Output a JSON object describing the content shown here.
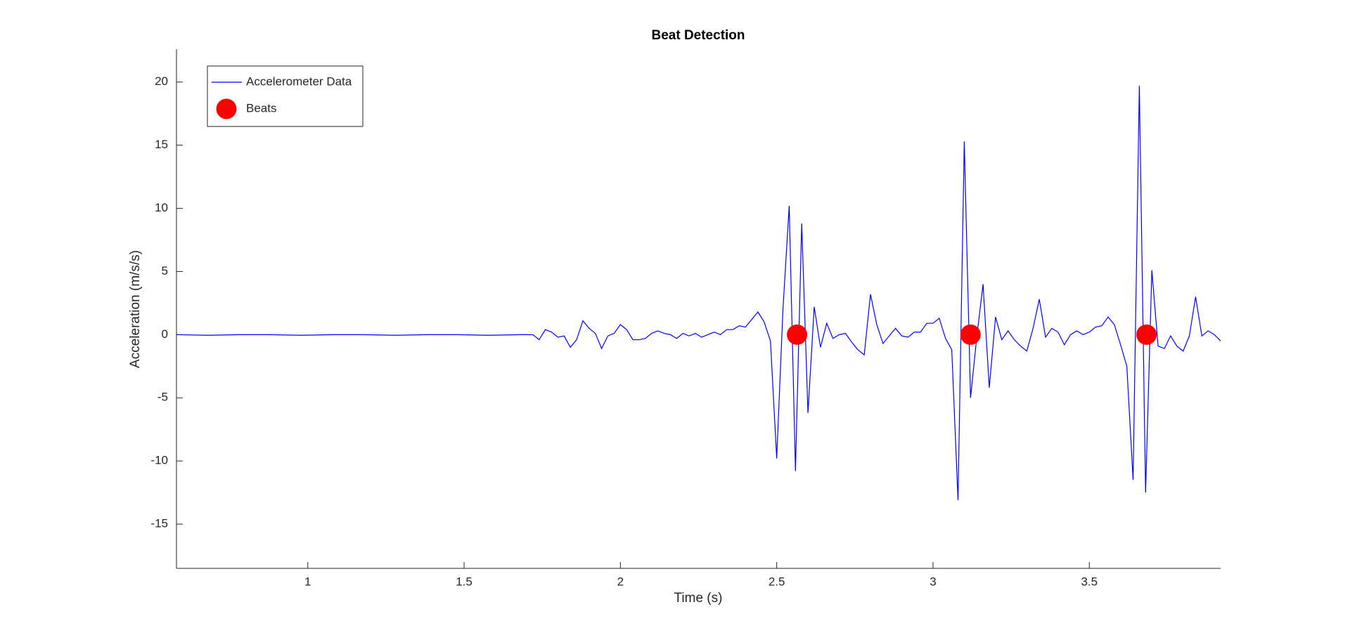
{
  "chart_data": {
    "type": "line",
    "title": "Beat Detection",
    "x_label": "Time (s)",
    "y_label": "Acceleration (m/s/s)",
    "xlim": [
      0.58,
      3.92
    ],
    "ylim": [
      -18.5,
      22.6
    ],
    "xticks": [
      1,
      1.5,
      2,
      2.5,
      3,
      3.5
    ],
    "yticks": [
      -15,
      -10,
      -5,
      0,
      5,
      10,
      15,
      20
    ],
    "legend": "upper-left",
    "grid": false,
    "series": [
      {
        "name": "Accelerometer Data",
        "type": "line",
        "color": "#0000ff",
        "x": [
          0.58,
          0.68,
          0.78,
          0.88,
          0.98,
          1.08,
          1.18,
          1.28,
          1.38,
          1.48,
          1.58,
          1.68,
          1.72,
          1.74,
          1.76,
          1.78,
          1.8,
          1.82,
          1.84,
          1.86,
          1.88,
          1.9,
          1.92,
          1.94,
          1.96,
          1.98,
          2.0,
          2.02,
          2.04,
          2.06,
          2.08,
          2.1,
          2.12,
          2.14,
          2.16,
          2.18,
          2.2,
          2.22,
          2.24,
          2.26,
          2.28,
          2.3,
          2.32,
          2.34,
          2.36,
          2.38,
          2.4,
          2.42,
          2.44,
          2.46,
          2.48,
          2.5,
          2.52,
          2.54,
          2.56,
          2.58,
          2.6,
          2.62,
          2.64,
          2.66,
          2.68,
          2.7,
          2.72,
          2.74,
          2.76,
          2.78,
          2.8,
          2.82,
          2.84,
          2.86,
          2.88,
          2.9,
          2.92,
          2.94,
          2.96,
          2.98,
          3.0,
          3.02,
          3.04,
          3.06,
          3.08,
          3.1,
          3.12,
          3.14,
          3.16,
          3.18,
          3.2,
          3.22,
          3.24,
          3.26,
          3.28,
          3.3,
          3.32,
          3.34,
          3.36,
          3.38,
          3.4,
          3.42,
          3.44,
          3.46,
          3.48,
          3.5,
          3.52,
          3.54,
          3.56,
          3.58,
          3.6,
          3.62,
          3.64,
          3.66,
          3.68,
          3.7,
          3.72,
          3.74,
          3.76,
          3.78,
          3.8,
          3.82,
          3.84,
          3.86,
          3.88,
          3.9,
          3.92
        ],
        "values": [
          0,
          -0.05,
          0,
          0,
          -0.05,
          0,
          0,
          -0.05,
          0,
          0,
          -0.05,
          0,
          0,
          -0.4,
          0.4,
          0.2,
          -0.2,
          -0.1,
          -1.0,
          -0.4,
          1.1,
          0.5,
          0.1,
          -1.1,
          -0.1,
          0.1,
          0.8,
          0.4,
          -0.4,
          -0.4,
          -0.3,
          0.1,
          0.3,
          0.1,
          0.0,
          -0.3,
          0.1,
          -0.1,
          0.1,
          -0.2,
          0.0,
          0.2,
          0.0,
          0.4,
          0.4,
          0.7,
          0.6,
          1.2,
          1.8,
          1.0,
          -0.5,
          -9.8,
          2.0,
          10.2,
          -10.8,
          8.8,
          -6.2,
          2.2,
          -1.0,
          0.9,
          -0.3,
          0.0,
          0.1,
          -0.6,
          -1.2,
          -1.6,
          3.2,
          0.8,
          -0.7,
          -0.1,
          0.5,
          -0.1,
          -0.2,
          0.2,
          0.2,
          0.9,
          0.9,
          1.3,
          -0.3,
          -1.2,
          -13.1,
          15.3,
          -5.0,
          -0.2,
          4.0,
          -4.2,
          1.4,
          -0.4,
          0.3,
          -0.4,
          -0.9,
          -1.3,
          0.5,
          2.8,
          -0.2,
          0.5,
          0.2,
          -0.8,
          0.0,
          0.3,
          0.0,
          0.2,
          0.6,
          0.7,
          1.4,
          0.8,
          -0.8,
          -2.5,
          -11.5,
          19.7,
          -12.5,
          5.1,
          -0.9,
          -1.1,
          -0.1,
          -0.9,
          -1.3,
          -0.1,
          3.0,
          -0.1,
          0.3,
          0.0,
          -0.5
        ]
      },
      {
        "name": "Beats",
        "type": "scatter",
        "color": "#ff0000",
        "x": [
          2.565,
          3.12,
          3.683
        ],
        "values": [
          0,
          0,
          0
        ]
      }
    ]
  }
}
